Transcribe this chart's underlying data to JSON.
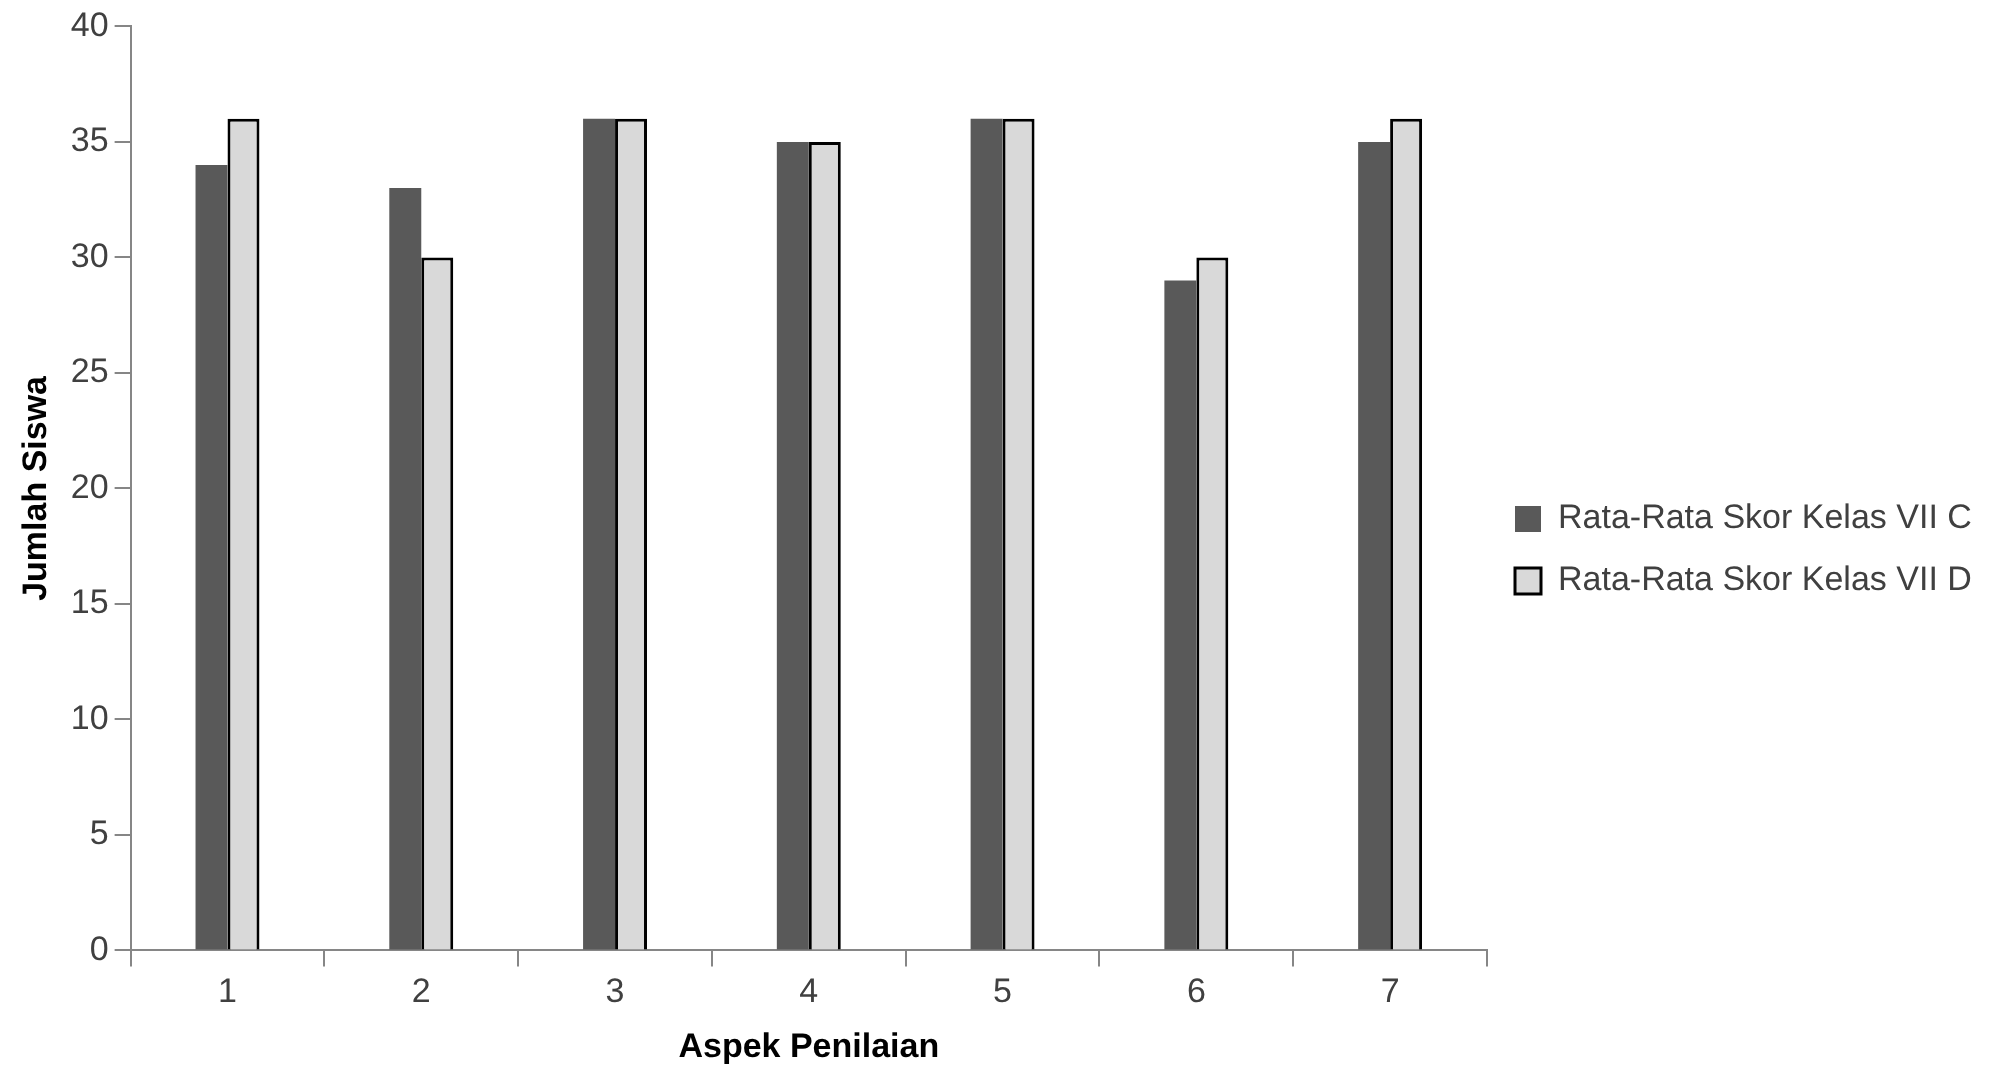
{
  "chart_data": {
    "type": "bar",
    "xlabel": "Aspek Penilaian",
    "ylabel": "Jumlah Siswa",
    "categories": [
      "1",
      "2",
      "3",
      "4",
      "5",
      "6",
      "7"
    ],
    "series": [
      {
        "name": "Rata-Rata Skor Kelas VII C",
        "color": "#595959",
        "values": [
          34,
          33,
          36,
          35,
          36,
          29,
          35
        ]
      },
      {
        "name": "Rata-Rata Skor Kelas VII D",
        "color": "#d9d9d9",
        "values": [
          36,
          30,
          36,
          35,
          36,
          30,
          36
        ]
      }
    ],
    "ylim": [
      0,
      40
    ],
    "yticks": [
      0,
      5,
      10,
      15,
      20,
      25,
      30,
      35,
      40
    ],
    "grid": false,
    "legend": "right"
  }
}
